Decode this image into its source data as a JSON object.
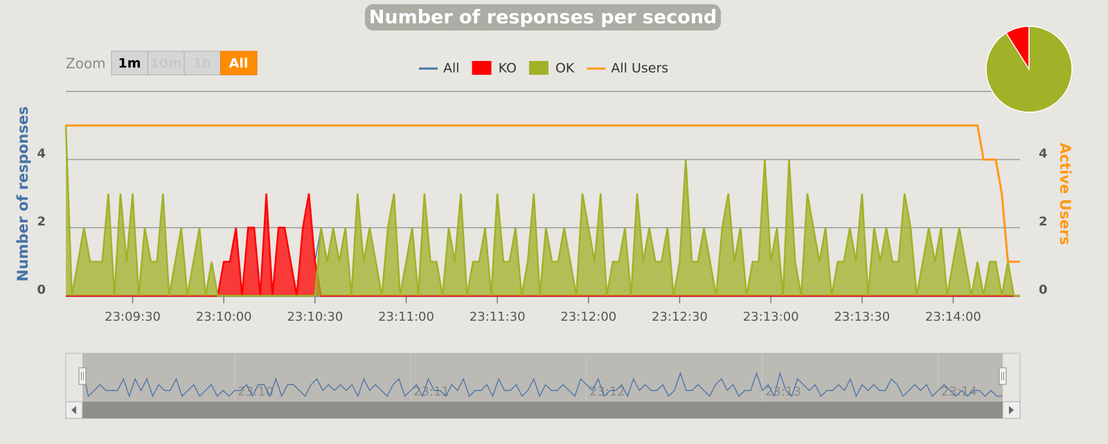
{
  "chart_data": [
    {
      "type": "area",
      "title": "Number of responses per second",
      "range_selector": {
        "label": "Zoom",
        "buttons": [
          "1m",
          "10m",
          "1h",
          "All"
        ],
        "selected": 3,
        "disabled": [
          1,
          2
        ]
      },
      "y_label": "Number of responses",
      "y2_label": "Active Users",
      "x": [
        "23:09:08",
        "23:09:10",
        "23:09:12",
        "23:09:14",
        "23:09:16",
        "23:09:18",
        "23:09:20",
        "23:09:22",
        "23:09:24",
        "23:09:26",
        "23:09:28",
        "23:09:30",
        "23:09:32",
        "23:09:34",
        "23:09:36",
        "23:09:38",
        "23:09:40",
        "23:09:42",
        "23:09:44",
        "23:09:46",
        "23:09:48",
        "23:09:50",
        "23:09:52",
        "23:09:54",
        "23:09:56",
        "23:09:58",
        "23:10:00",
        "23:10:02",
        "23:10:04",
        "23:10:06",
        "23:10:08",
        "23:10:10",
        "23:10:12",
        "23:10:14",
        "23:10:16",
        "23:10:18",
        "23:10:20",
        "23:10:22",
        "23:10:24",
        "23:10:26",
        "23:10:28",
        "23:10:30",
        "23:10:32",
        "23:10:34",
        "23:10:36",
        "23:10:38",
        "23:10:40",
        "23:10:42",
        "23:10:44",
        "23:10:46",
        "23:10:48",
        "23:10:50",
        "23:10:52",
        "23:10:54",
        "23:10:56",
        "23:10:58",
        "23:11:00",
        "23:11:02",
        "23:11:04",
        "23:11:06",
        "23:11:08",
        "23:11:10",
        "23:11:12",
        "23:11:14",
        "23:11:16",
        "23:11:18",
        "23:11:20",
        "23:11:22",
        "23:11:24",
        "23:11:26",
        "23:11:28",
        "23:11:30",
        "23:11:32",
        "23:11:34",
        "23:11:36",
        "23:11:38",
        "23:11:40",
        "23:11:42",
        "23:11:44",
        "23:11:46",
        "23:11:48",
        "23:11:50",
        "23:11:52",
        "23:11:54",
        "23:11:56",
        "23:11:58",
        "23:12:00",
        "23:12:02",
        "23:12:04",
        "23:12:06",
        "23:12:08",
        "23:12:10",
        "23:12:12",
        "23:12:14",
        "23:12:16",
        "23:12:18",
        "23:12:20",
        "23:12:22",
        "23:12:24",
        "23:12:26",
        "23:12:28",
        "23:12:30",
        "23:12:32",
        "23:12:34",
        "23:12:36",
        "23:12:38",
        "23:12:40",
        "23:12:42",
        "23:12:44",
        "23:12:46",
        "23:12:48",
        "23:12:50",
        "23:12:52",
        "23:12:54",
        "23:12:56",
        "23:12:58",
        "23:13:00",
        "23:13:02",
        "23:13:04",
        "23:13:06",
        "23:13:08",
        "23:13:10",
        "23:13:12",
        "23:13:14",
        "23:13:16",
        "23:13:18",
        "23:13:20",
        "23:13:22",
        "23:13:24",
        "23:13:26",
        "23:13:28",
        "23:13:30",
        "23:13:32",
        "23:13:34",
        "23:13:36",
        "23:13:38",
        "23:13:40",
        "23:13:42",
        "23:13:44",
        "23:13:46",
        "23:13:48",
        "23:13:50",
        "23:13:52",
        "23:13:54",
        "23:13:56",
        "23:13:58",
        "23:14:00",
        "23:14:02",
        "23:14:04",
        "23:14:06",
        "23:14:08",
        "23:14:10",
        "23:14:12",
        "23:14:14",
        "23:14:16",
        "23:14:18",
        "23:14:20",
        "23:14:22"
      ],
      "xlim": [
        "23:09:08",
        "23:14:22"
      ],
      "xticks": [
        "23:09:30",
        "23:10:00",
        "23:10:30",
        "23:11:00",
        "23:11:30",
        "23:12:00",
        "23:12:30",
        "23:13:00",
        "23:13:30",
        "23:14:00"
      ],
      "ylim": [
        0,
        6
      ],
      "yticks": [
        0,
        2,
        4
      ],
      "y2lim": [
        0,
        6
      ],
      "y2ticks": [
        0,
        2,
        4
      ],
      "grid": true,
      "navigator_series": 0,
      "navigator_ticks": [
        "23:10",
        "23:11",
        "23:12",
        "23:13",
        "23:14"
      ],
      "series": [
        {
          "name": "All",
          "color": "#4572a7",
          "style": "line",
          "values": [
            5,
            0,
            1,
            2,
            1,
            1,
            1,
            3,
            0,
            3,
            1,
            3,
            0,
            2,
            1,
            1,
            3,
            0,
            1,
            2,
            0,
            1,
            2,
            0,
            1,
            0,
            1,
            1,
            2,
            0,
            2,
            2,
            0,
            3,
            0,
            2,
            2,
            1,
            0,
            2,
            3,
            1,
            2,
            1,
            2,
            1,
            2,
            0,
            3,
            1,
            2,
            1,
            0,
            2,
            3,
            0,
            1,
            2,
            0,
            3,
            1,
            1,
            0,
            2,
            1,
            3,
            0,
            1,
            1,
            2,
            0,
            3,
            1,
            1,
            2,
            0,
            1,
            3,
            0,
            2,
            1,
            1,
            2,
            1,
            0,
            3,
            2,
            1,
            3,
            0,
            1,
            1,
            2,
            0,
            3,
            1,
            2,
            1,
            1,
            2,
            0,
            1,
            4,
            1,
            1,
            2,
            1,
            0,
            2,
            3,
            1,
            2,
            0,
            1,
            1,
            4,
            1,
            2,
            0,
            4,
            1,
            0,
            3,
            2,
            1,
            2,
            0,
            1,
            1,
            2,
            1,
            3,
            0,
            2,
            1,
            2,
            1,
            1,
            3,
            2,
            0,
            1,
            2,
            1,
            2,
            0,
            1,
            2,
            1,
            0,
            1,
            0,
            1,
            1,
            0,
            1,
            0,
            0
          ]
        },
        {
          "name": "KO",
          "color": "#ff0000",
          "style": "area",
          "values": [
            0,
            0,
            0,
            0,
            0,
            0,
            0,
            0,
            0,
            0,
            0,
            0,
            0,
            0,
            0,
            0,
            0,
            0,
            0,
            0,
            0,
            0,
            0,
            0,
            0,
            0,
            1,
            1,
            2,
            0,
            2,
            2,
            0,
            3,
            0,
            2,
            2,
            1,
            0,
            2,
            3,
            1,
            0,
            0,
            0,
            0,
            0,
            0,
            0,
            0,
            0,
            0,
            0,
            0,
            0,
            0,
            0,
            0,
            0,
            0,
            0,
            0,
            0,
            0,
            0,
            0,
            0,
            0,
            0,
            0,
            0,
            0,
            0,
            0,
            0,
            0,
            0,
            0,
            0,
            0,
            0,
            0,
            0,
            0,
            0,
            0,
            0,
            0,
            0,
            0,
            0,
            0,
            0,
            0,
            0,
            0,
            0,
            0,
            0,
            0,
            0,
            0,
            0,
            0,
            0,
            0,
            0,
            0,
            0,
            0,
            0,
            0,
            0,
            0,
            0,
            0,
            0,
            0,
            0,
            0,
            0,
            0,
            0,
            0,
            0,
            0,
            0,
            0,
            0,
            0,
            0,
            0,
            0,
            0,
            0,
            0,
            0,
            0,
            0,
            0,
            0,
            0,
            0,
            0,
            0,
            0,
            0,
            0,
            0,
            0,
            0,
            0,
            0,
            0,
            0,
            0,
            0,
            0
          ]
        },
        {
          "name": "OK",
          "color": "#a0b228",
          "style": "area",
          "values": [
            5,
            0,
            1,
            2,
            1,
            1,
            1,
            3,
            0,
            3,
            1,
            3,
            0,
            2,
            1,
            1,
            3,
            0,
            1,
            2,
            0,
            1,
            2,
            0,
            1,
            0,
            0,
            0,
            0,
            0,
            0,
            0,
            0,
            0,
            0,
            0,
            0,
            0,
            0,
            0,
            0,
            0,
            2,
            1,
            2,
            1,
            2,
            0,
            3,
            1,
            2,
            1,
            0,
            2,
            3,
            0,
            1,
            2,
            0,
            3,
            1,
            1,
            0,
            2,
            1,
            3,
            0,
            1,
            1,
            2,
            0,
            3,
            1,
            1,
            2,
            0,
            1,
            3,
            0,
            2,
            1,
            1,
            2,
            1,
            0,
            3,
            2,
            1,
            3,
            0,
            1,
            1,
            2,
            0,
            3,
            1,
            2,
            1,
            1,
            2,
            0,
            1,
            4,
            1,
            1,
            2,
            1,
            0,
            2,
            3,
            1,
            2,
            0,
            1,
            1,
            4,
            1,
            2,
            0,
            4,
            1,
            0,
            3,
            2,
            1,
            2,
            0,
            1,
            1,
            2,
            1,
            3,
            0,
            2,
            1,
            2,
            1,
            1,
            3,
            2,
            0,
            1,
            2,
            1,
            2,
            0,
            1,
            2,
            1,
            0,
            1,
            0,
            1,
            1,
            0,
            1,
            0,
            0
          ]
        },
        {
          "name": "All Users",
          "color": "#ff9916",
          "style": "line",
          "axis": "y2",
          "values": [
            5,
            5,
            5,
            5,
            5,
            5,
            5,
            5,
            5,
            5,
            5,
            5,
            5,
            5,
            5,
            5,
            5,
            5,
            5,
            5,
            5,
            5,
            5,
            5,
            5,
            5,
            5,
            5,
            5,
            5,
            5,
            5,
            5,
            5,
            5,
            5,
            5,
            5,
            5,
            5,
            5,
            5,
            5,
            5,
            5,
            5,
            5,
            5,
            5,
            5,
            5,
            5,
            5,
            5,
            5,
            5,
            5,
            5,
            5,
            5,
            5,
            5,
            5,
            5,
            5,
            5,
            5,
            5,
            5,
            5,
            5,
            5,
            5,
            5,
            5,
            5,
            5,
            5,
            5,
            5,
            5,
            5,
            5,
            5,
            5,
            5,
            5,
            5,
            5,
            5,
            5,
            5,
            5,
            5,
            5,
            5,
            5,
            5,
            5,
            5,
            5,
            5,
            5,
            5,
            5,
            5,
            5,
            5,
            5,
            5,
            5,
            5,
            5,
            5,
            5,
            5,
            5,
            5,
            5,
            5,
            5,
            5,
            5,
            5,
            5,
            5,
            5,
            5,
            5,
            5,
            5,
            5,
            5,
            5,
            5,
            5,
            5,
            5,
            5,
            5,
            5,
            5,
            5,
            5,
            5,
            5,
            5,
            5,
            5,
            5,
            5,
            4,
            4,
            4,
            3,
            1,
            1,
            1
          ]
        }
      ]
    },
    {
      "type": "pie",
      "values": [
        91,
        9
      ],
      "colors": [
        "#a0b228",
        "#ff0000"
      ]
    }
  ]
}
